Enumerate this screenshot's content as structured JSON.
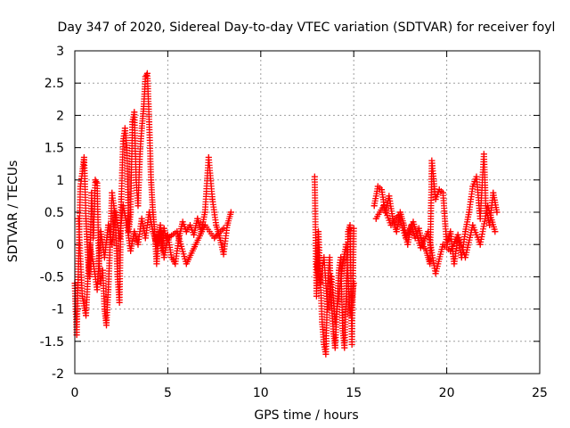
{
  "chart_data": {
    "type": "scatter",
    "title": "Day 347 of 2020, Sidereal Day-to-day VTEC variation (SDTVAR) for receiver foyl",
    "xlabel": "GPS time / hours",
    "ylabel": "SDTVAR / TECUs",
    "xlim": [
      0,
      25
    ],
    "ylim": [
      -2,
      3
    ],
    "xticks": [
      0,
      5,
      10,
      15,
      20,
      25
    ],
    "xtick_labels": [
      "0",
      "5",
      "10",
      "15",
      "20",
      "25"
    ],
    "yticks": [
      -2,
      -1.5,
      -1,
      -0.5,
      0,
      0.5,
      1,
      1.5,
      2,
      2.5,
      3
    ],
    "ytick_labels": [
      "-2",
      "-1.5",
      "-1",
      "-0.5",
      "0",
      "0.5",
      "1",
      "1.5",
      "2",
      "2.5",
      "3"
    ],
    "grid": true,
    "marker": "+",
    "series": [
      {
        "name": "SDTVAR",
        "color": "#ff0000",
        "segments": [
          {
            "x": [
              0.0,
              0.1,
              0.2,
              0.3,
              0.4,
              0.5,
              0.6,
              0.7,
              0.8,
              0.9,
              1.0,
              1.1,
              1.2,
              1.3,
              1.4,
              1.5,
              1.6,
              1.7,
              1.8,
              1.9,
              2.0,
              2.1,
              2.2,
              2.3,
              2.4,
              2.5,
              2.6,
              2.7,
              2.8,
              2.9,
              3.0,
              3.1,
              3.2,
              3.3,
              3.4,
              3.5,
              3.6,
              3.7,
              3.8,
              3.9,
              4.0,
              4.1,
              4.2,
              4.3,
              4.4,
              4.5,
              4.6,
              4.7,
              4.8,
              4.9,
              5.0,
              5.2,
              5.4,
              5.6,
              5.8,
              6.0,
              6.2,
              6.4,
              6.6,
              6.8,
              7.0,
              7.2,
              7.4,
              7.6,
              7.8,
              8.0,
              8.2,
              8.4
            ],
            "y": [
              -0.6,
              -1.4,
              -0.3,
              0.9,
              1.1,
              1.35,
              0.4,
              -0.2,
              -0.5,
              0.8,
              0.1,
              1.0,
              0.95,
              -0.3,
              -0.6,
              -0.4,
              -1.0,
              -1.25,
              -0.7,
              0.0,
              0.8,
              0.6,
              0.3,
              -0.5,
              -0.9,
              0.7,
              1.6,
              1.8,
              1.5,
              0.2,
              0.5,
              1.9,
              2.05,
              1.0,
              0.6,
              1.4,
              1.8,
              2.1,
              2.6,
              2.65,
              1.9,
              1.0,
              0.5,
              0.2,
              -0.3,
              0.1,
              0.2,
              -0.1,
              0.25,
              0.1,
              0.15,
              -0.2,
              -0.3,
              0.1,
              0.35,
              0.2,
              0.3,
              0.15,
              0.4,
              0.2,
              0.5,
              1.35,
              0.7,
              0.3,
              0.1,
              -0.15,
              0.3,
              0.5
            ]
          },
          {
            "x": [
              0.2,
              0.4,
              0.6,
              0.8,
              1.0,
              1.2,
              1.4,
              1.6,
              1.8,
              2.0,
              2.2,
              2.4,
              2.6,
              2.8,
              3.0,
              3.2,
              3.4,
              3.6,
              3.8,
              4.0,
              4.2,
              4.4,
              4.6,
              4.8,
              5.0,
              5.5,
              6.0,
              6.5,
              7.0,
              7.5,
              8.0
            ],
            "y": [
              0.4,
              -0.8,
              -1.1,
              0.0,
              -0.3,
              -0.7,
              0.2,
              -0.2,
              0.3,
              0.0,
              0.5,
              0.1,
              0.6,
              0.3,
              -0.1,
              0.2,
              0.0,
              0.4,
              0.1,
              0.5,
              0.2,
              0.0,
              0.3,
              -0.2,
              0.1,
              0.2,
              -0.3,
              0.0,
              0.3,
              0.1,
              0.25
            ]
          },
          {
            "x": [
              12.9,
              13.0,
              13.1,
              13.2,
              13.3,
              13.4,
              13.5,
              13.6,
              13.7,
              13.8,
              13.9,
              14.0,
              14.1,
              14.2,
              14.3,
              14.4,
              14.5,
              14.6,
              14.7,
              14.8,
              14.9,
              15.0
            ],
            "y": [
              1.05,
              -0.8,
              0.2,
              -0.5,
              -1.2,
              -1.55,
              -1.7,
              -0.6,
              -0.2,
              -0.9,
              -1.35,
              -1.6,
              -1.0,
              -0.4,
              -0.2,
              -1.3,
              -1.6,
              -0.8,
              0.2,
              0.3,
              -1.55,
              0.25
            ]
          },
          {
            "x": [
              13.0,
              13.2,
              13.4,
              13.6,
              13.8,
              14.0,
              14.2,
              14.4,
              14.6,
              14.8,
              15.0
            ],
            "y": [
              -0.3,
              -0.6,
              -0.2,
              -1.0,
              -0.5,
              -1.2,
              -0.8,
              -0.3,
              0.0,
              -1.1,
              -0.6
            ]
          },
          {
            "x": [
              16.1,
              16.3,
              16.5,
              16.7,
              16.9,
              17.1,
              17.3,
              17.5,
              17.7,
              17.9,
              18.1,
              18.3,
              18.5,
              18.7,
              18.9,
              19.1,
              19.2,
              19.4,
              19.6,
              19.8,
              20.0,
              20.2,
              20.4,
              20.6,
              20.8,
              21.0,
              21.2,
              21.4,
              21.6,
              21.8,
              22.0,
              22.1,
              22.3,
              22.5,
              22.7
            ],
            "y": [
              0.6,
              0.9,
              0.85,
              0.5,
              0.75,
              0.4,
              0.2,
              0.5,
              0.3,
              0.0,
              0.3,
              0.1,
              0.25,
              0.0,
              -0.1,
              -0.3,
              1.3,
              0.7,
              0.85,
              0.8,
              0.0,
              0.2,
              -0.3,
              0.1,
              -0.2,
              0.2,
              0.5,
              0.9,
              1.05,
              0.4,
              1.4,
              0.6,
              0.3,
              0.8,
              0.5
            ]
          },
          {
            "x": [
              16.2,
              16.6,
              17.0,
              17.4,
              17.8,
              18.2,
              18.6,
              19.0,
              19.4,
              19.8,
              20.2,
              20.6,
              21.0,
              21.4,
              21.8,
              22.2,
              22.6
            ],
            "y": [
              0.4,
              0.6,
              0.3,
              0.45,
              0.1,
              0.35,
              -0.05,
              0.2,
              -0.45,
              0.0,
              -0.1,
              0.15,
              -0.2,
              0.3,
              0.0,
              0.6,
              0.2
            ]
          }
        ]
      }
    ]
  }
}
